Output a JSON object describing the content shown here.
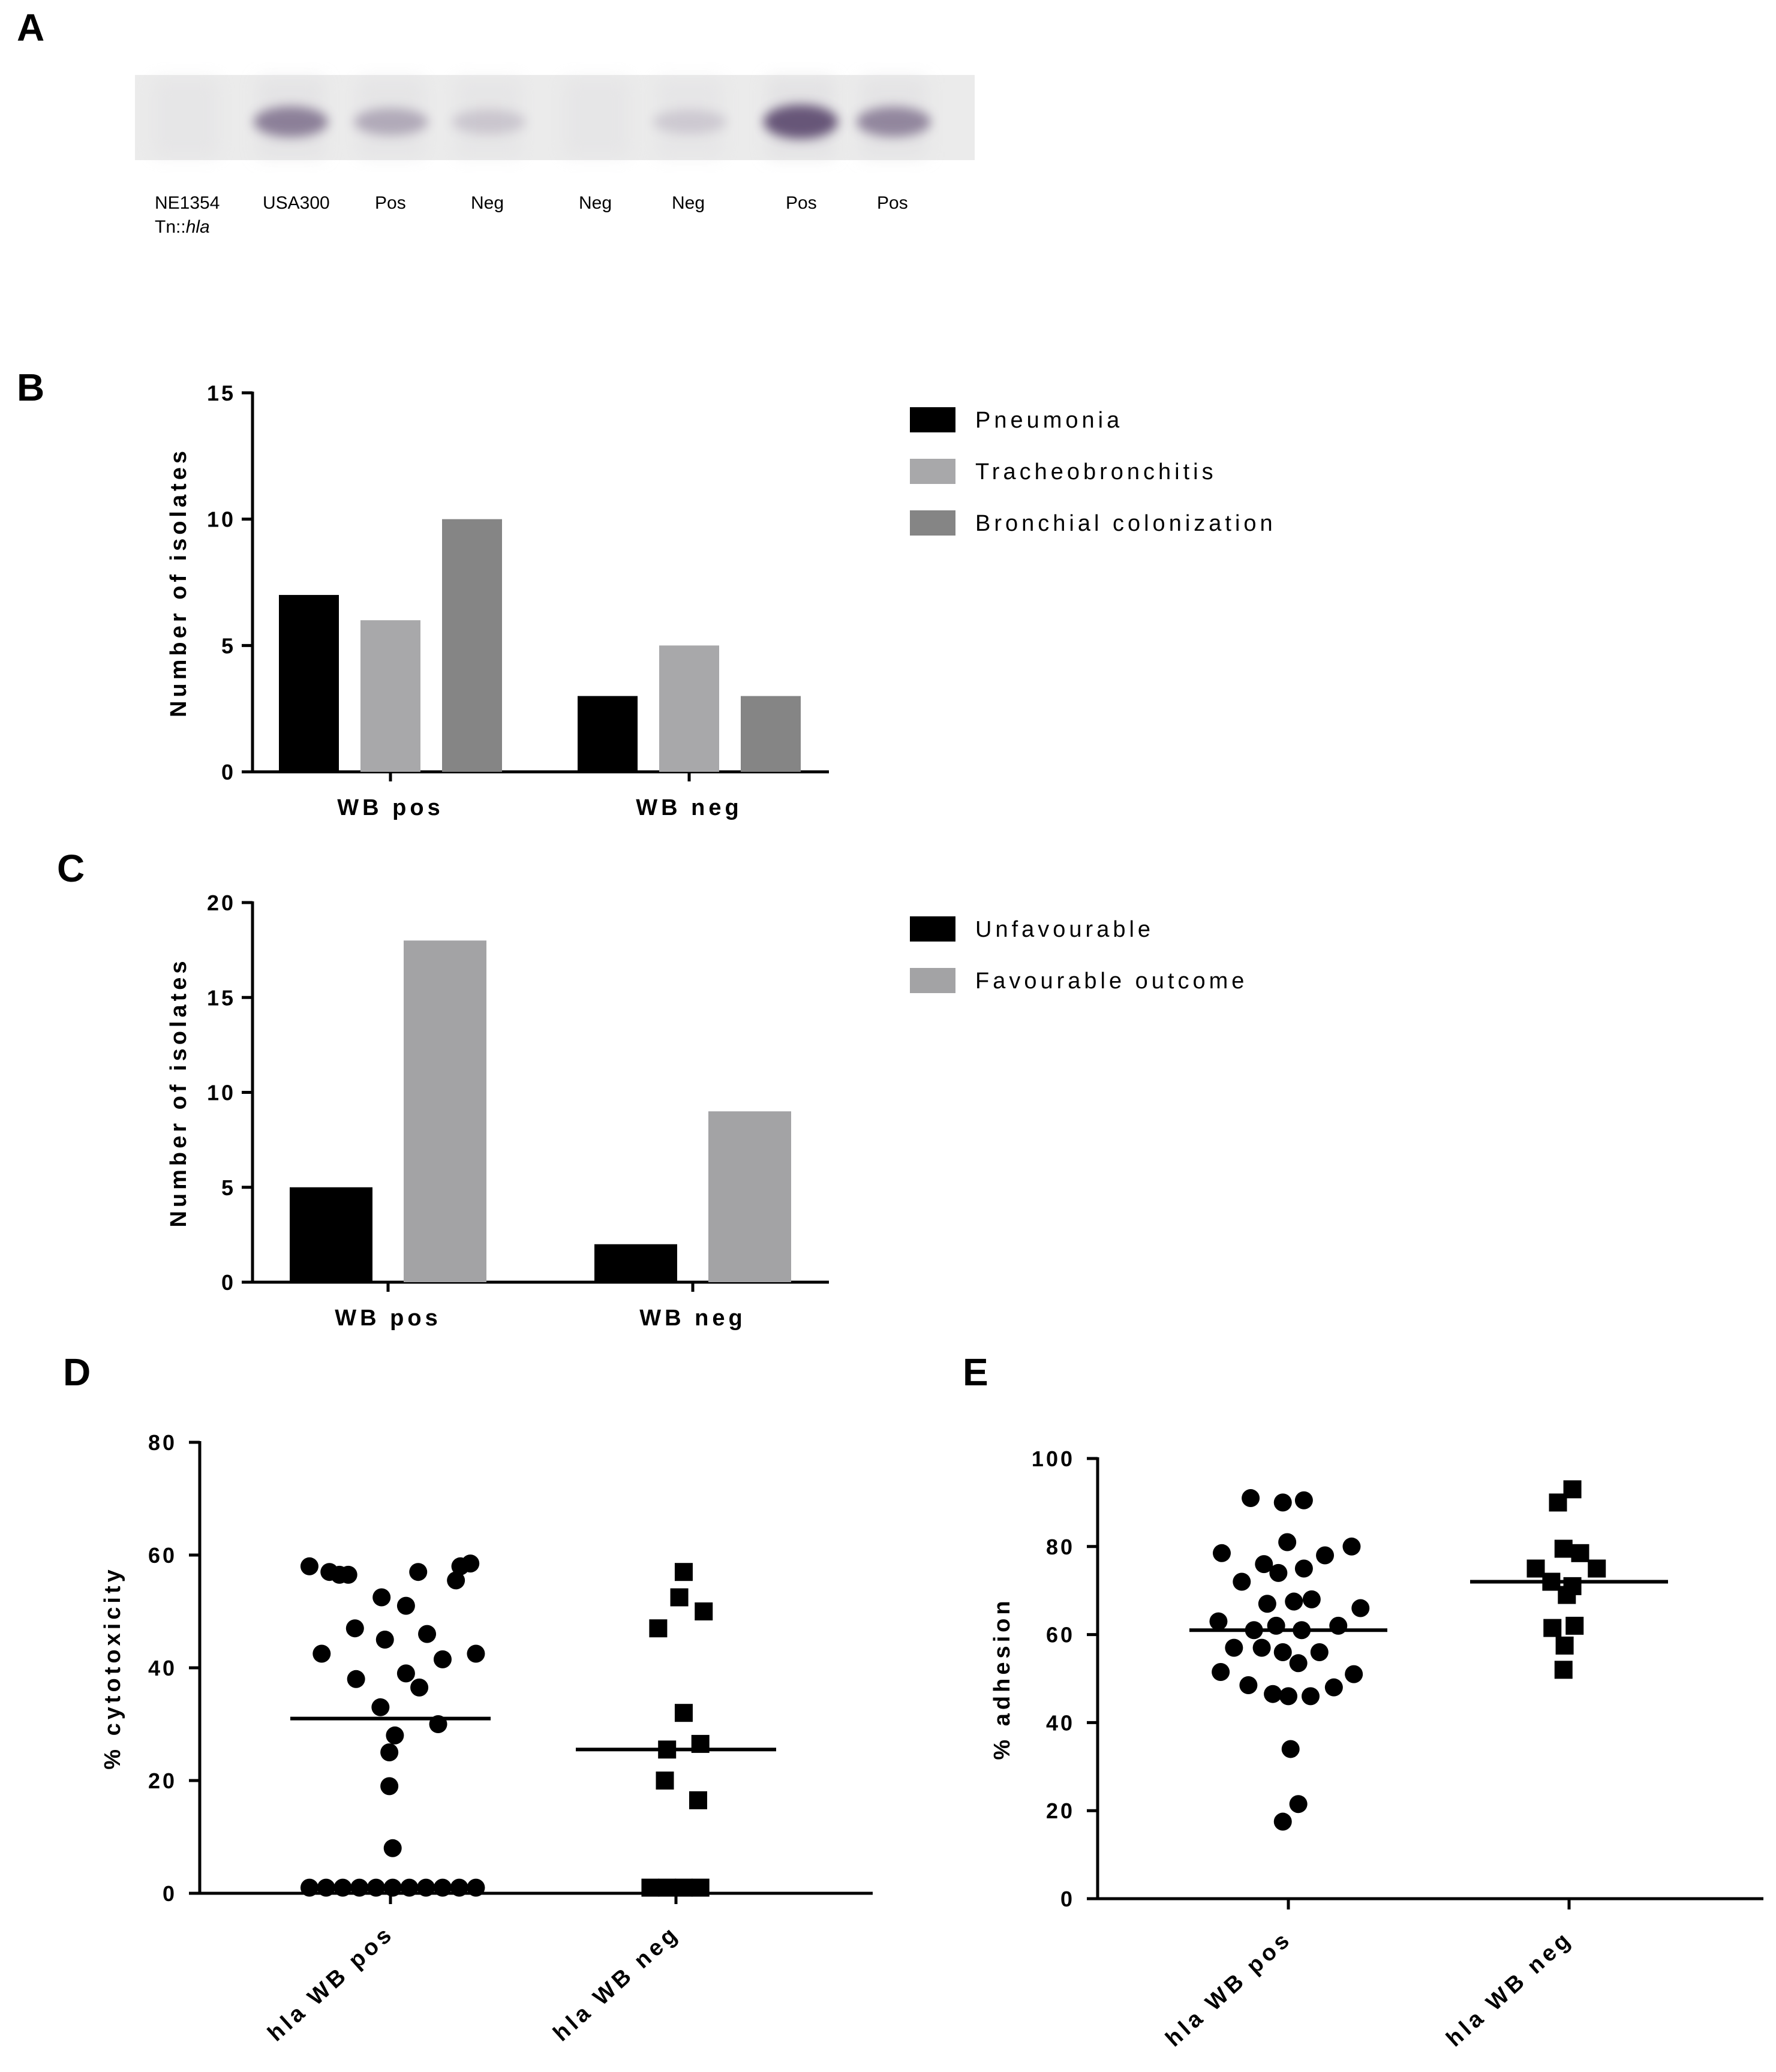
{
  "panels": {
    "A": "A",
    "B": "B",
    "C": "C",
    "D": "D",
    "E": "E"
  },
  "blot": {
    "lanes": [
      {
        "label": "NE1354",
        "label2_prefix": "Tn::",
        "label2_italic": "hla",
        "intensity": 0.0
      },
      {
        "label": "USA300",
        "intensity": 0.55
      },
      {
        "label": "Pos",
        "intensity": 0.25
      },
      {
        "label": "Neg",
        "intensity": 0.05
      },
      {
        "label": "Neg",
        "intensity": 0.0
      },
      {
        "label": "Neg",
        "intensity": 0.03
      },
      {
        "label": "Pos",
        "intensity": 0.85
      },
      {
        "label": "Pos",
        "intensity": 0.5
      }
    ],
    "colors": {
      "background": "#ebebeb",
      "band": "#5b4a6e"
    }
  },
  "chart_data": [
    {
      "id": "B",
      "type": "bar",
      "categories": [
        "WB pos",
        "WB neg"
      ],
      "series": [
        {
          "name": "Pneumonia",
          "values": [
            7,
            3
          ],
          "color": "#000000"
        },
        {
          "name": "Tracheobronchitis",
          "values": [
            6,
            5
          ],
          "color": "#a8a8aa"
        },
        {
          "name": "Bronchial colonization",
          "values": [
            10,
            3
          ],
          "color": "#858585"
        }
      ],
      "ylabel": "Number of isolates",
      "ylim": [
        0,
        15
      ],
      "yticks": [
        0,
        5,
        10,
        15
      ],
      "legend": "right"
    },
    {
      "id": "C",
      "type": "bar",
      "categories": [
        "WB pos",
        "WB neg"
      ],
      "series": [
        {
          "name": "Unfavourable",
          "values": [
            5,
            2
          ],
          "color": "#000000"
        },
        {
          "name": "Favourable outcome",
          "values": [
            18,
            9
          ],
          "color": "#a3a3a5"
        }
      ],
      "ylabel": "Number of isolates",
      "ylim": [
        0,
        20
      ],
      "yticks": [
        0,
        5,
        10,
        15,
        20
      ],
      "legend": "right"
    },
    {
      "id": "D",
      "type": "scatter",
      "categories": [
        "hla WB pos",
        "hla WB neg"
      ],
      "ylabel": "% cytotoxicity",
      "ylim": [
        0,
        80
      ],
      "yticks": [
        0,
        20,
        40,
        60,
        80
      ],
      "groups": [
        {
          "name": "hla WB pos",
          "marker": "circle",
          "points": [
            [
              -0.73,
              58
            ],
            [
              -0.55,
              57
            ],
            [
              -0.46,
              56.5
            ],
            [
              -0.38,
              56.5
            ],
            [
              -0.08,
              52.5
            ],
            [
              0.25,
              57
            ],
            [
              0.63,
              58
            ],
            [
              0.72,
              58.5
            ],
            [
              0.59,
              55.5
            ],
            [
              0.14,
              51
            ],
            [
              -0.32,
              47
            ],
            [
              0.33,
              46
            ],
            [
              -0.05,
              45
            ],
            [
              -0.62,
              42.5
            ],
            [
              0.47,
              41.5
            ],
            [
              0.77,
              42.5
            ],
            [
              0.14,
              39
            ],
            [
              -0.31,
              38
            ],
            [
              0.26,
              36.5
            ],
            [
              -0.09,
              33
            ],
            [
              0.43,
              30
            ],
            [
              0.04,
              28
            ],
            [
              -0.01,
              25
            ],
            [
              -0.01,
              19
            ],
            [
              0.02,
              8
            ],
            [
              -0.73,
              1
            ],
            [
              -0.58,
              1
            ],
            [
              -0.43,
              1
            ],
            [
              -0.28,
              1
            ],
            [
              -0.13,
              1
            ],
            [
              0.02,
              1
            ],
            [
              0.17,
              1
            ],
            [
              0.32,
              1
            ],
            [
              0.47,
              1
            ],
            [
              0.62,
              1
            ],
            [
              0.77,
              1
            ]
          ],
          "mean": 31
        },
        {
          "name": "hla WB neg",
          "marker": "square",
          "points": [
            [
              0.07,
              57
            ],
            [
              0.03,
              52.5
            ],
            [
              0.25,
              50
            ],
            [
              -0.16,
              47
            ],
            [
              0.07,
              32
            ],
            [
              0.22,
              26.5
            ],
            [
              -0.08,
              25.5
            ],
            [
              -0.1,
              20
            ],
            [
              0.2,
              16.5
            ],
            [
              -0.23,
              1
            ],
            [
              -0.08,
              1
            ],
            [
              0.07,
              1
            ],
            [
              0.22,
              1
            ]
          ],
          "mean": 25.5
        }
      ]
    },
    {
      "id": "E",
      "type": "scatter",
      "categories": [
        "hla WB pos",
        "hla WB neg"
      ],
      "ylabel": "% adhesion",
      "ylim": [
        0,
        100
      ],
      "yticks": [
        0,
        20,
        40,
        60,
        80,
        100
      ],
      "groups": [
        {
          "name": "hla WB pos",
          "marker": "circle",
          "points": [
            [
              -0.34,
              91
            ],
            [
              -0.05,
              90
            ],
            [
              0.14,
              90.5
            ],
            [
              -0.01,
              81
            ],
            [
              -0.6,
              78.5
            ],
            [
              0.33,
              78
            ],
            [
              0.57,
              80
            ],
            [
              -0.22,
              76
            ],
            [
              -0.09,
              74
            ],
            [
              0.14,
              75
            ],
            [
              -0.42,
              72
            ],
            [
              -0.19,
              67
            ],
            [
              0.05,
              67.5
            ],
            [
              0.21,
              68
            ],
            [
              0.65,
              66
            ],
            [
              -0.63,
              63
            ],
            [
              -0.31,
              61
            ],
            [
              -0.11,
              62
            ],
            [
              0.12,
              61
            ],
            [
              0.45,
              62
            ],
            [
              -0.49,
              57
            ],
            [
              -0.24,
              57
            ],
            [
              -0.05,
              56
            ],
            [
              0.28,
              56
            ],
            [
              0.09,
              53.5
            ],
            [
              0.59,
              51
            ],
            [
              -0.61,
              51.5
            ],
            [
              -0.36,
              48.5
            ],
            [
              -0.14,
              46.5
            ],
            [
              0.0,
              46
            ],
            [
              0.2,
              46
            ],
            [
              0.41,
              48
            ],
            [
              0.02,
              34
            ],
            [
              0.09,
              21.5
            ],
            [
              -0.05,
              17.5
            ]
          ],
          "mean": 61
        },
        {
          "name": "hla WB neg",
          "marker": "square",
          "points": [
            [
              0.03,
              93
            ],
            [
              -0.1,
              90
            ],
            [
              -0.05,
              79.5
            ],
            [
              0.1,
              78.5
            ],
            [
              -0.3,
              75
            ],
            [
              0.25,
              75
            ],
            [
              -0.16,
              72
            ],
            [
              0.03,
              71
            ],
            [
              -0.02,
              69
            ],
            [
              0.05,
              62
            ],
            [
              -0.15,
              61.5
            ],
            [
              -0.04,
              57.5
            ],
            [
              -0.05,
              52
            ]
          ],
          "mean": 72
        }
      ]
    }
  ]
}
